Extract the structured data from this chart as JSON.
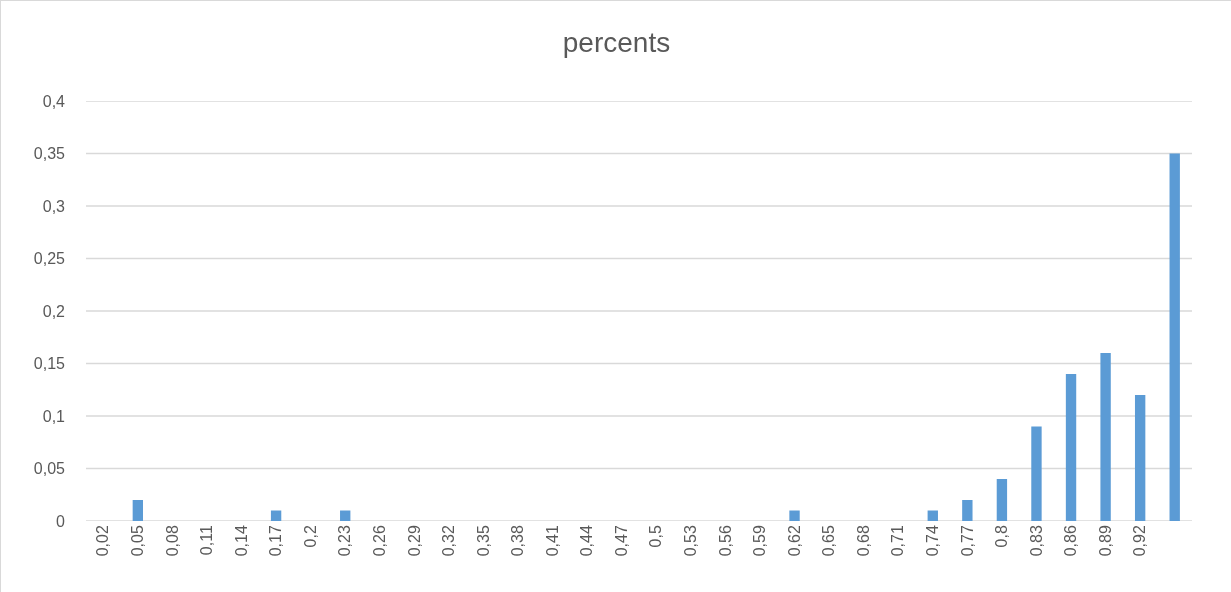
{
  "chart_data": {
    "type": "bar",
    "title": "percents",
    "categories": [
      "0,02",
      "0,05",
      "0,08",
      "0,11",
      "0,14",
      "0,17",
      "0,2",
      "0,23",
      "0,26",
      "0,29",
      "0,32",
      "0,35",
      "0,38",
      "0,41",
      "0,44",
      "0,47",
      "0,5",
      "0,53",
      "0,56",
      "0,59",
      "0,62",
      "0,65",
      "0,68",
      "0,71",
      "0,74",
      "0,77",
      "0,8",
      "0,83",
      "0,86",
      "0,89",
      "0,92",
      null
    ],
    "values": [
      0,
      0.02,
      0,
      0,
      0,
      0.01,
      0,
      0.01,
      0,
      0,
      0,
      0,
      0,
      0,
      0,
      0,
      0,
      0,
      0,
      0,
      0.01,
      0,
      0,
      0,
      0.01,
      0.02,
      0.04,
      0.09,
      0.14,
      0.16,
      0.12,
      0.35
    ],
    "color": "#5b9bd5",
    "ylim": [
      0,
      0.4
    ],
    "yticks": [
      {
        "value": 0,
        "label": "0"
      },
      {
        "value": 0.05,
        "label": "0,05"
      },
      {
        "value": 0.1,
        "label": "0,1"
      },
      {
        "value": 0.15,
        "label": "0,15"
      },
      {
        "value": 0.2,
        "label": "0,2"
      },
      {
        "value": 0.25,
        "label": "0,25"
      },
      {
        "value": 0.3,
        "label": "0,3"
      },
      {
        "value": 0.35,
        "label": "0,35"
      },
      {
        "value": 0.4,
        "label": "0,4"
      }
    ],
    "grid": "y"
  }
}
